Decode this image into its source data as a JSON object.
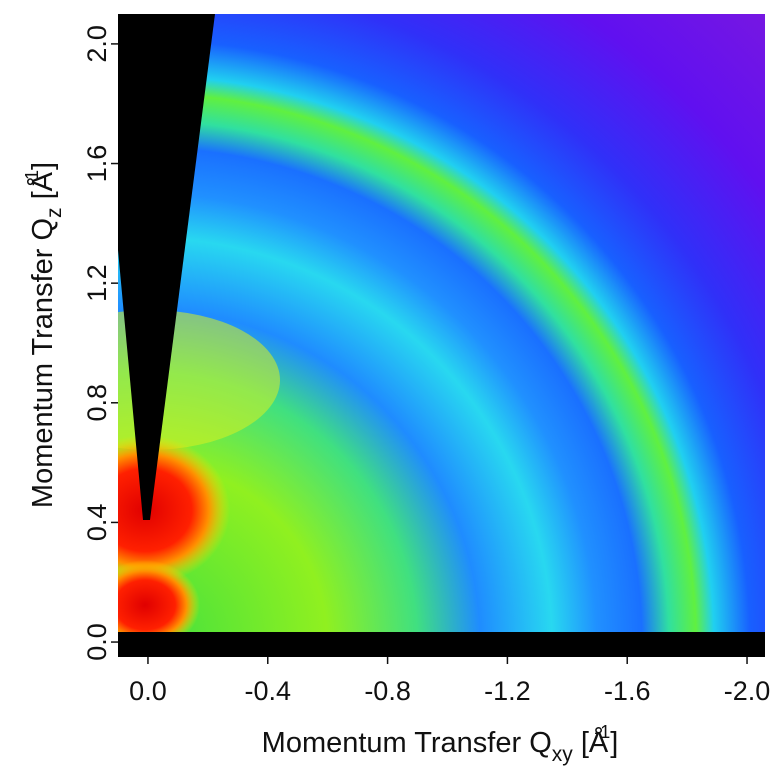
{
  "chart_data": {
    "type": "heatmap-image",
    "x_label": {
      "main": "Momentum Transfer Q",
      "sub": "xy",
      "unit_open": " [Å",
      "sup": "-1",
      "unit_close": "]"
    },
    "y_label": {
      "main": "Momentum Transfer Q",
      "sub": "z",
      "unit_open": " [Å",
      "sup": "-1",
      "unit_close": "]"
    },
    "xlim": [
      0.1,
      -2.06
    ],
    "ylim": [
      -0.05,
      2.1
    ],
    "xticks": [
      {
        "value": 0,
        "label": "0.0"
      },
      -0.4,
      -0.8,
      -1.2,
      -1.6,
      {
        "value": -2,
        "label": "-2.0"
      }
    ],
    "yticks": [
      {
        "value": 0,
        "label": "0.0"
      },
      0.4,
      0.8,
      1.2,
      1.6,
      {
        "value": 2,
        "label": "2.0"
      }
    ]
  }
}
